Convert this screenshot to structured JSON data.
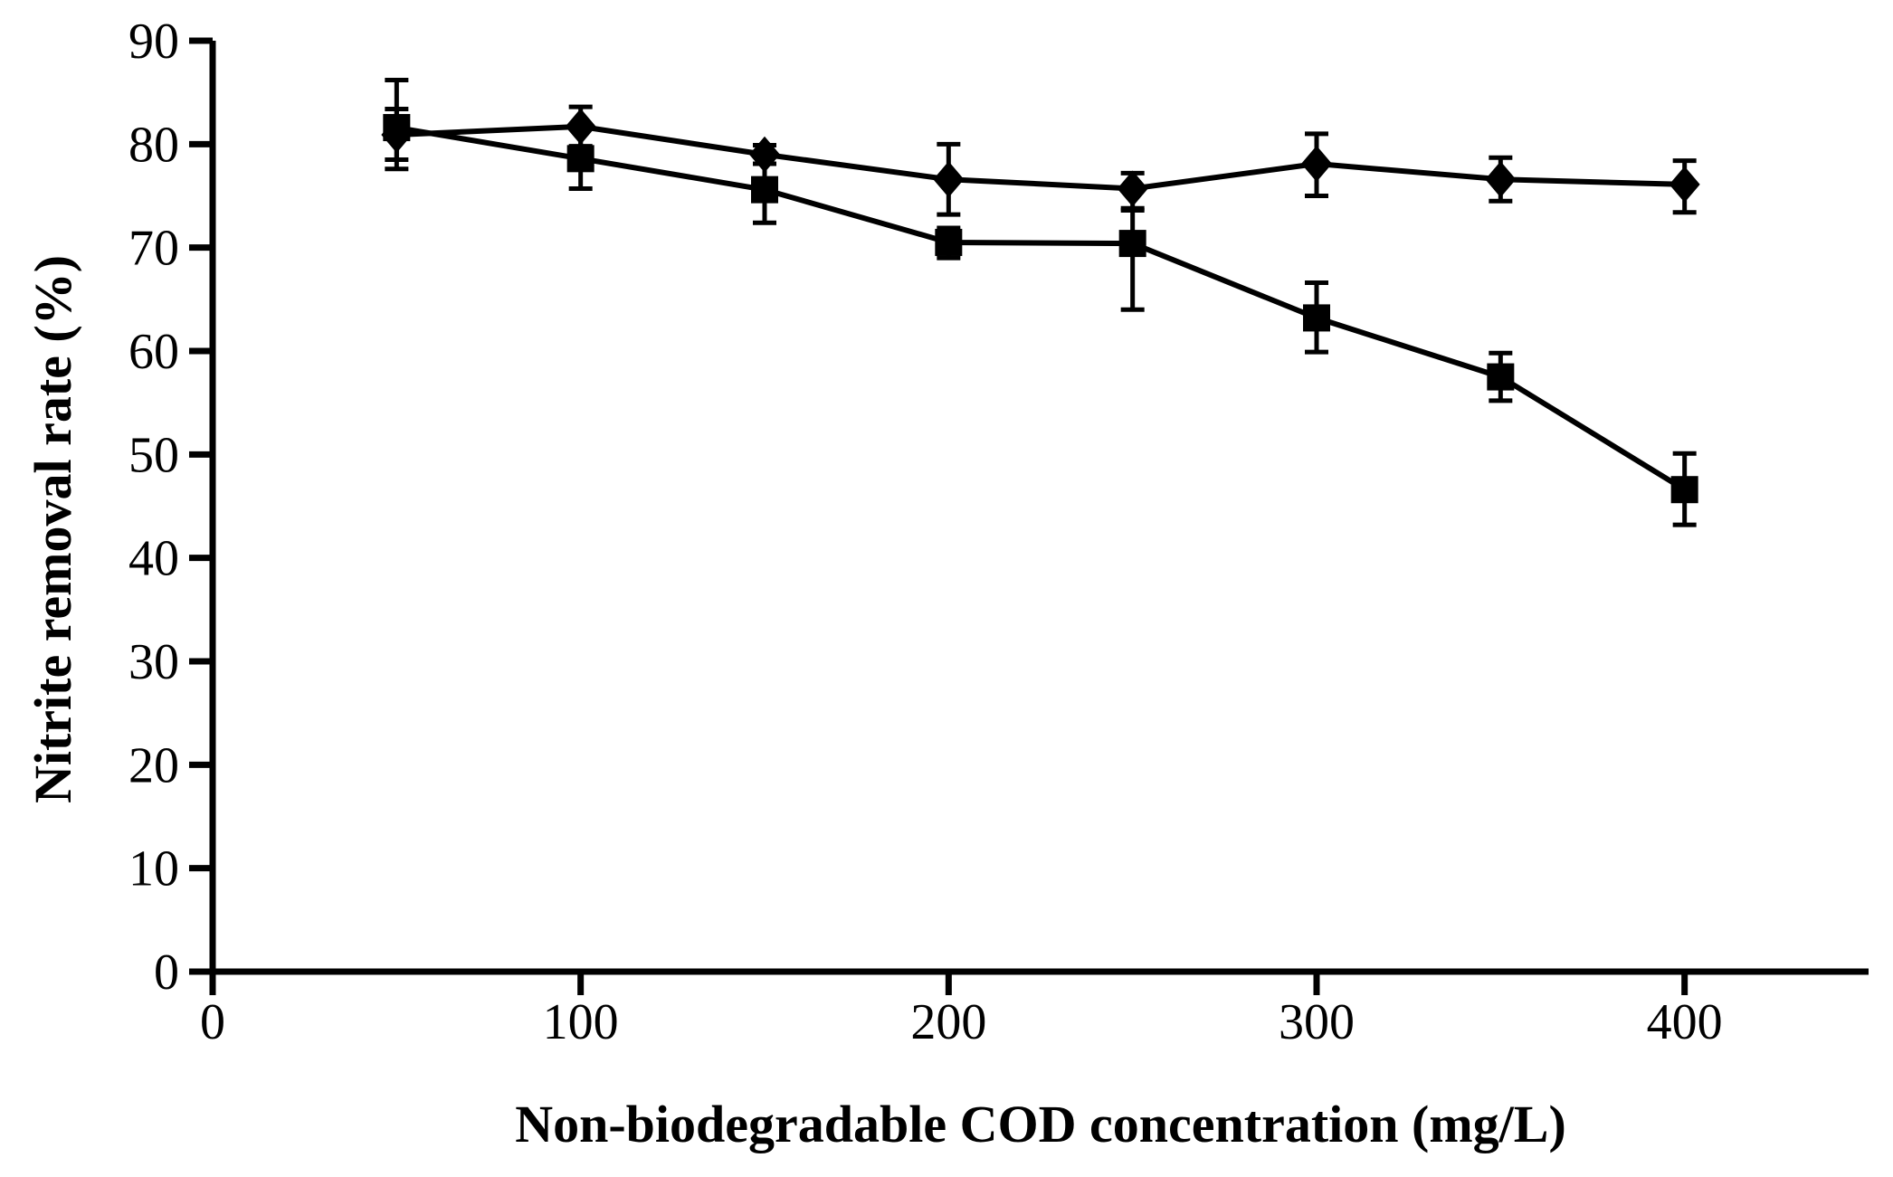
{
  "figure": {
    "background": "#ffffff",
    "ink_color": "#000000"
  },
  "chart_data": {
    "type": "line",
    "title": "",
    "xlabel": "Non-biodegradable COD concentration (mg/L)",
    "ylabel": "Nitrite removal rate (%)",
    "xlim": [
      0,
      450
    ],
    "ylim": [
      0,
      90
    ],
    "x_ticks": [
      0,
      100,
      200,
      300,
      400
    ],
    "y_ticks": [
      0,
      10,
      20,
      30,
      40,
      50,
      60,
      70,
      80,
      90
    ],
    "grid": false,
    "legend": "none",
    "x": [
      50,
      100,
      150,
      200,
      250,
      300,
      350,
      400
    ],
    "series": [
      {
        "name": "diamond-series",
        "marker": "diamond",
        "values": [
          80.9,
          81.7,
          79.0,
          76.6,
          75.7,
          78.1,
          76.6,
          76.1
        ],
        "err_up": [
          2.5,
          1.9,
          0.9,
          3.4,
          1.5,
          2.9,
          2.1,
          2.3
        ],
        "err_down": [
          3.3,
          1.9,
          0.9,
          3.4,
          1.9,
          3.1,
          2.1,
          2.7
        ]
      },
      {
        "name": "square-series",
        "marker": "square",
        "values": [
          81.6,
          78.6,
          75.6,
          70.5,
          70.4,
          63.2,
          57.5,
          46.6
        ],
        "err_up": [
          4.6,
          2.9,
          3.3,
          1.4,
          3.2,
          3.4,
          2.3,
          3.5
        ],
        "err_down": [
          3.1,
          2.9,
          3.2,
          1.5,
          6.4,
          3.3,
          2.3,
          3.4
        ]
      }
    ]
  }
}
